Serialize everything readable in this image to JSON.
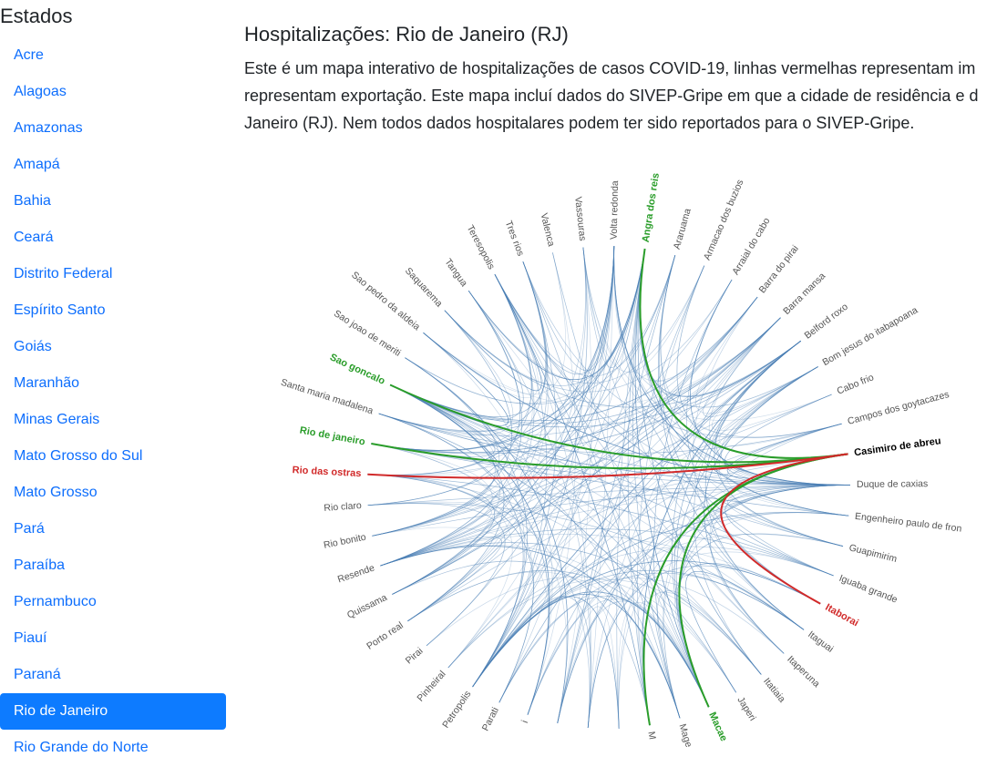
{
  "sidebar": {
    "title": "Estados",
    "items": [
      {
        "label": "Acre"
      },
      {
        "label": "Alagoas"
      },
      {
        "label": "Amazonas"
      },
      {
        "label": "Amapá"
      },
      {
        "label": "Bahia"
      },
      {
        "label": "Ceará"
      },
      {
        "label": "Distrito Federal"
      },
      {
        "label": "Espírito Santo"
      },
      {
        "label": "Goiás"
      },
      {
        "label": "Maranhão"
      },
      {
        "label": "Minas Gerais"
      },
      {
        "label": "Mato Grosso do Sul"
      },
      {
        "label": "Mato Grosso"
      },
      {
        "label": "Pará"
      },
      {
        "label": "Paraíba"
      },
      {
        "label": "Pernambuco"
      },
      {
        "label": "Piauí"
      },
      {
        "label": "Paraná"
      },
      {
        "label": "Rio de Janeiro",
        "active": true
      },
      {
        "label": "Rio Grande do Norte"
      }
    ]
  },
  "main": {
    "title": "Hospitalizações: Rio de Janeiro (RJ)",
    "description_lines": [
      "Este é um mapa interativo de hospitalizações de casos COVID-19, linhas vermelhas representam im",
      "representam exportação. Este mapa incluí dados do SIVEP-Gripe em que a cidade de residência e d",
      "Janeiro (RJ). Nem todos dados hospitalares podem ter sido reportados para o SIVEP-Gripe."
    ]
  },
  "colors": {
    "link": "#0d6efd",
    "active_bg": "#0d7bff",
    "edge": "#4a7fb5",
    "import_edge": "#d12a2a",
    "export_edge": "#2a9d2a"
  },
  "chart_data": {
    "type": "chord",
    "nodes": [
      {
        "name": "Angra dos reis",
        "highlight": "green"
      },
      {
        "name": "Araruama"
      },
      {
        "name": "Armacao dos buzios"
      },
      {
        "name": "Arraial do cabo"
      },
      {
        "name": "Barra do pirai"
      },
      {
        "name": "Barra mansa"
      },
      {
        "name": "Belford roxo"
      },
      {
        "name": "Bom jesus do itabapoana"
      },
      {
        "name": "Cabo frio"
      },
      {
        "name": "Campos dos goytacazes"
      },
      {
        "name": "Casimiro de abreu",
        "highlight": "focus"
      },
      {
        "name": "Duque de caxias"
      },
      {
        "name": "Engenheiro paulo de fron"
      },
      {
        "name": "Guapimirim"
      },
      {
        "name": "Iguaba grande"
      },
      {
        "name": "Itaborai",
        "highlight": "red"
      },
      {
        "name": "Itaguai"
      },
      {
        "name": "Itaperuna"
      },
      {
        "name": "Itatiaia"
      },
      {
        "name": "Japeri"
      },
      {
        "name": "Macae",
        "highlight": "green"
      },
      {
        "name": "Mage"
      },
      {
        "name": "M"
      },
      {
        "name": ""
      },
      {
        "name": ""
      },
      {
        "name": ""
      },
      {
        "name": "i"
      },
      {
        "name": "Parati"
      },
      {
        "name": "Petropolis"
      },
      {
        "name": "Pinheiral"
      },
      {
        "name": "Pirai"
      },
      {
        "name": "Porto real"
      },
      {
        "name": "Quissama"
      },
      {
        "name": "Resende"
      },
      {
        "name": "Rio bonito"
      },
      {
        "name": "Rio claro"
      },
      {
        "name": "Rio das ostras",
        "highlight": "red"
      },
      {
        "name": "Rio de janeiro",
        "highlight": "green"
      },
      {
        "name": "Santa maria madalena"
      },
      {
        "name": "Sao goncalo",
        "highlight": "green"
      },
      {
        "name": "Sao joao de meriti"
      },
      {
        "name": "Sao pedro da aldeia"
      },
      {
        "name": "Saquarema"
      },
      {
        "name": "Tangua"
      },
      {
        "name": "Teresopolis"
      },
      {
        "name": "Tres rios"
      },
      {
        "name": "Valenca"
      },
      {
        "name": "Vassouras"
      },
      {
        "name": "Volta redonda"
      }
    ],
    "highlighted_links": [
      {
        "source": "Casimiro de abreu",
        "target": "Angra dos reis",
        "type": "export"
      },
      {
        "source": "Casimiro de abreu",
        "target": "Sao goncalo",
        "type": "export"
      },
      {
        "source": "Casimiro de abreu",
        "target": "Rio de janeiro",
        "type": "export"
      },
      {
        "source": "Casimiro de abreu",
        "target": "Macae",
        "type": "export"
      },
      {
        "source": "Casimiro de abreu",
        "target": "M",
        "type": "export"
      },
      {
        "source": "Rio das ostras",
        "target": "Casimiro de abreu",
        "type": "import"
      },
      {
        "source": "Itaborai",
        "target": "Casimiro de abreu",
        "type": "import"
      }
    ]
  }
}
